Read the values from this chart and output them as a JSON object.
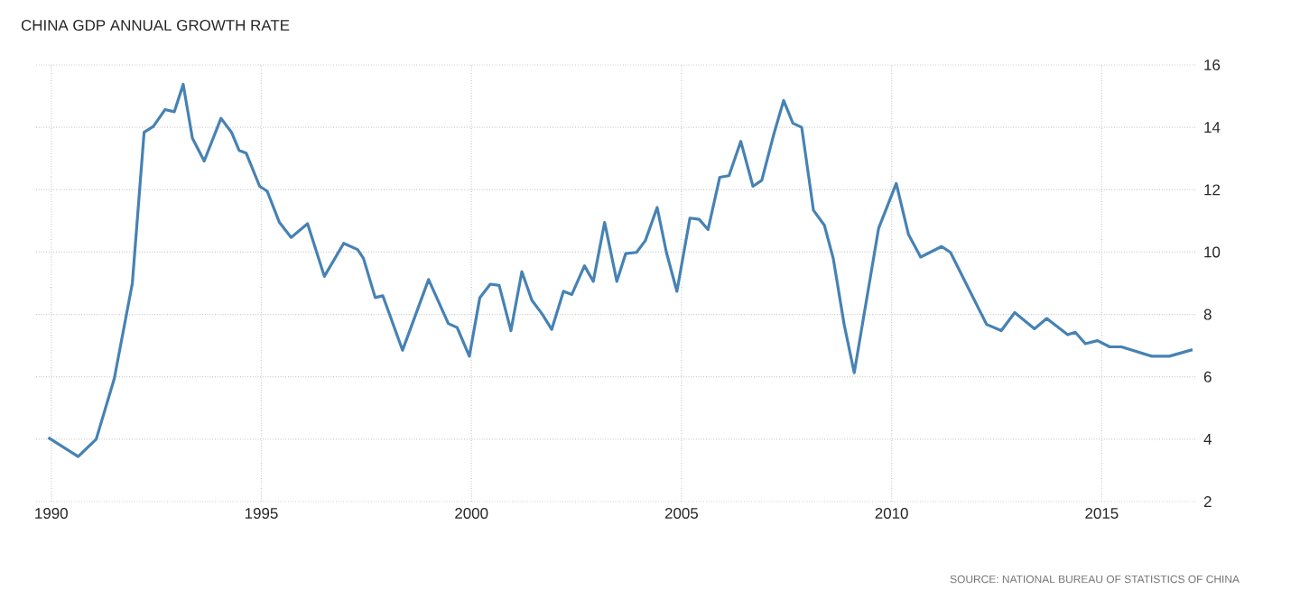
{
  "chart_data": {
    "type": "line",
    "title": "CHINA GDP ANNUAL GROWTH RATE",
    "annotations": [
      "SOURCE: NATIONAL BUREAU OF STATISTICS OF CHINA"
    ],
    "x": [
      1989.93,
      1990.64,
      1991.07,
      1991.5,
      1991.93,
      1992.21,
      1992.43,
      1992.71,
      1992.93,
      1993.14,
      1993.36,
      1993.64,
      1994.04,
      1994.29,
      1994.47,
      1994.64,
      1994.96,
      1995.14,
      1995.43,
      1995.71,
      1996.1,
      1996.5,
      1996.96,
      1997.29,
      1997.43,
      1997.71,
      1997.89,
      1998.36,
      1998.98,
      1999.45,
      1999.66,
      1999.95,
      2000.2,
      2000.45,
      2000.66,
      2000.94,
      2001.2,
      2001.44,
      2001.68,
      2001.91,
      2002.19,
      2002.39,
      2002.69,
      2002.9,
      2003.17,
      2003.46,
      2003.67,
      2003.93,
      2004.14,
      2004.42,
      2004.64,
      2004.89,
      2005.2,
      2005.42,
      2005.63,
      2005.91,
      2006.13,
      2006.41,
      2006.7,
      2006.91,
      2007.19,
      2007.43,
      2007.65,
      2007.86,
      2008.14,
      2008.4,
      2008.61,
      2008.87,
      2009.11,
      2009.69,
      2010.11,
      2010.4,
      2010.69,
      2011.19,
      2011.4,
      2011.76,
      2012.26,
      2012.61,
      2012.93,
      2013.4,
      2013.69,
      2014.19,
      2014.37,
      2014.61,
      2014.9,
      2015.19,
      2015.47,
      2016.19,
      2016.61,
      2017.16
    ],
    "values": [
      4.05,
      3.44,
      4.0,
      5.94,
      9.0,
      13.84,
      14.03,
      14.57,
      14.5,
      15.38,
      13.65,
      12.92,
      14.29,
      13.84,
      13.26,
      13.17,
      12.11,
      11.95,
      10.95,
      10.47,
      10.91,
      9.22,
      10.28,
      10.08,
      9.8,
      8.54,
      8.6,
      6.85,
      9.12,
      7.71,
      7.58,
      6.66,
      8.54,
      8.97,
      8.93,
      7.48,
      9.37,
      8.45,
      8.02,
      7.52,
      8.74,
      8.64,
      9.56,
      9.06,
      10.95,
      9.06,
      9.95,
      9.99,
      10.37,
      11.43,
      9.99,
      8.74,
      11.09,
      11.05,
      10.72,
      12.4,
      12.45,
      13.55,
      12.11,
      12.3,
      13.75,
      14.86,
      14.13,
      14.0,
      11.34,
      10.86,
      9.8,
      7.68,
      6.13,
      10.76,
      12.2,
      10.57,
      9.84,
      10.18,
      9.99,
      9.02,
      7.68,
      7.48,
      8.06,
      7.54,
      7.87,
      7.35,
      7.43,
      7.06,
      7.16,
      6.96,
      6.96,
      6.66,
      6.66,
      6.87
    ],
    "color": "#4682b4",
    "line_style": "solid",
    "xlim": [
      1989.64,
      2017.27
    ],
    "ylim": [
      2,
      16
    ],
    "xticks": [
      1990,
      1995,
      2000,
      2005,
      2010,
      2015
    ],
    "yticks": [
      2,
      4,
      6,
      8,
      10,
      12,
      14,
      16
    ],
    "grid": true
  }
}
